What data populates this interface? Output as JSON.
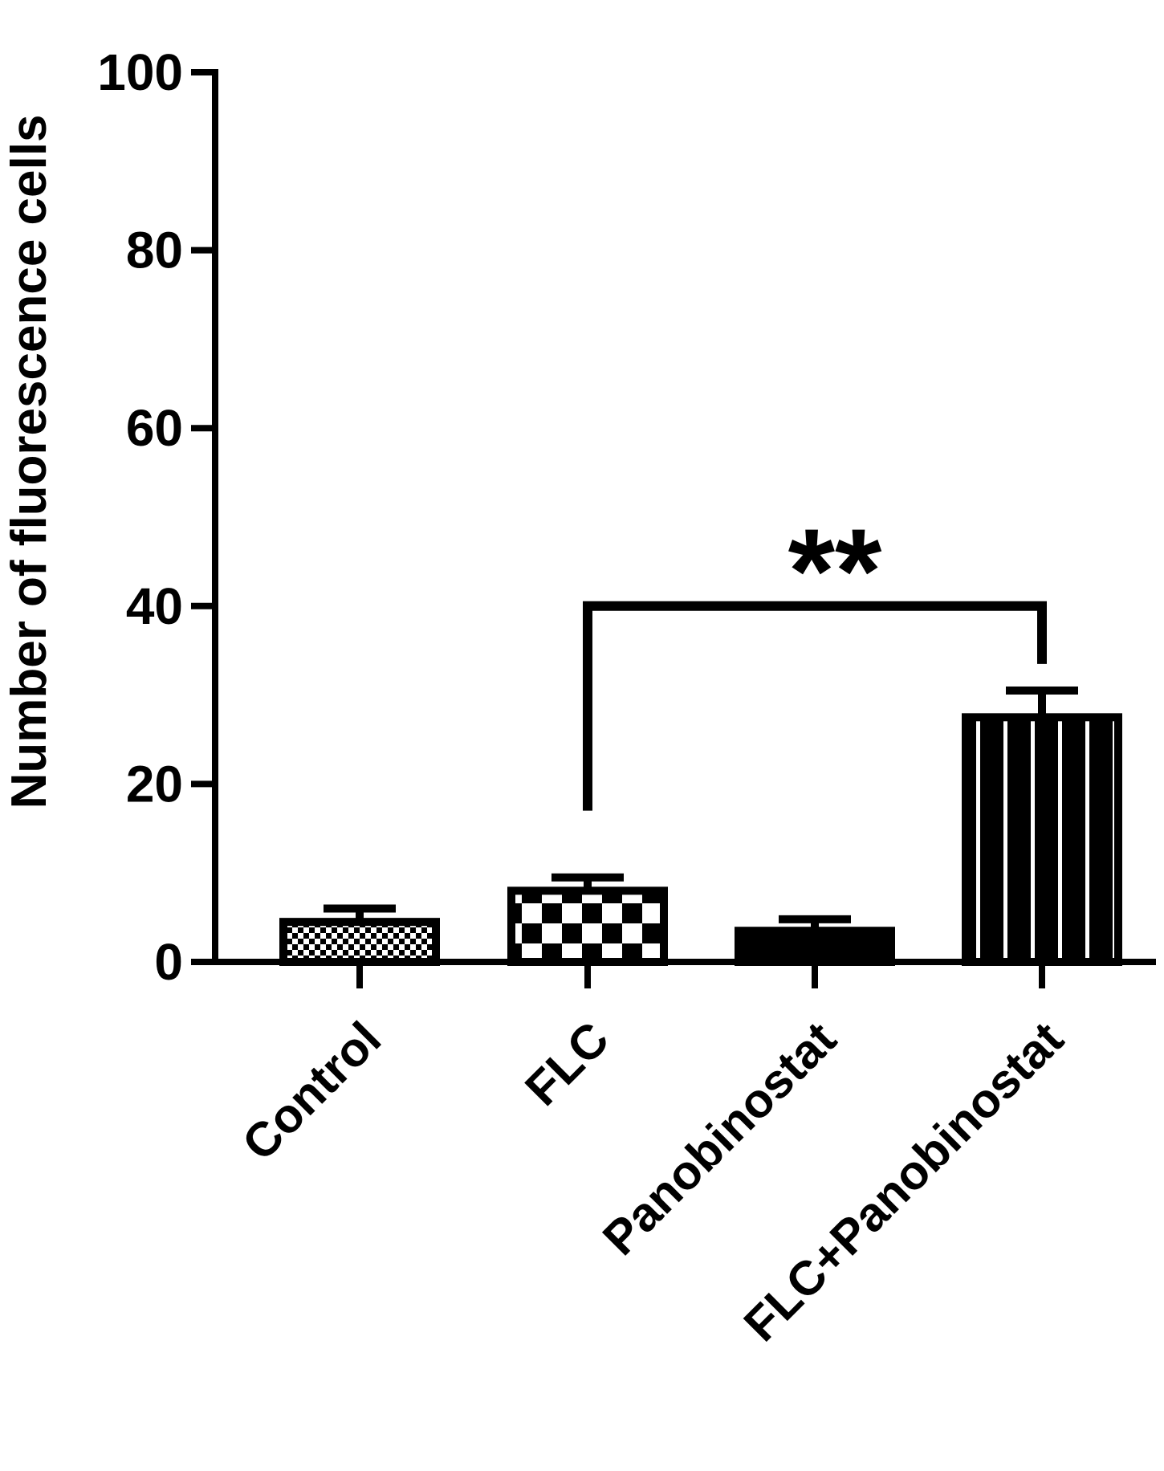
{
  "chart_data": {
    "type": "bar",
    "categories": [
      "Control",
      "FLC",
      "Panobinostat",
      "FLC+Panobinostat"
    ],
    "values": [
      4.5,
      8.0,
      3.5,
      27.5
    ],
    "errors": [
      1.5,
      1.5,
      1.3,
      3.0
    ],
    "ylabel": "Number of fluorescence cells",
    "ylim": [
      0,
      100
    ],
    "yticks": [
      0,
      20,
      40,
      60,
      80,
      100
    ],
    "bar_fill": [
      "small-checker",
      "large-checker",
      "solid",
      "vertical-stripes"
    ],
    "significance": {
      "from": "FLC",
      "to": "FLC+Panobinostat",
      "label": "**"
    },
    "grid": false,
    "legend": "none"
  }
}
